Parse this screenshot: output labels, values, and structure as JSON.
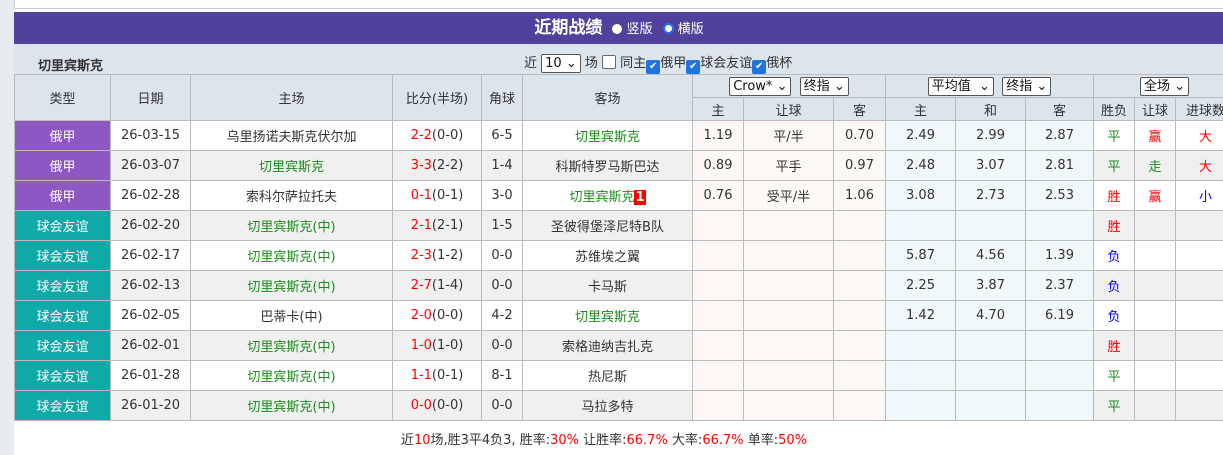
{
  "title": "近期战绩",
  "layout_options": [
    {
      "label": "竖版",
      "selected": false
    },
    {
      "label": "横版",
      "selected": true
    }
  ],
  "team": "切里宾斯克",
  "filters": {
    "near": "近",
    "count": "10",
    "unit": "场",
    "same_home": {
      "label": "同主",
      "checked": false
    },
    "leagues": [
      {
        "label": "俄甲",
        "checked": true
      },
      {
        "label": "球会友谊",
        "checked": true
      },
      {
        "label": "俄杯",
        "checked": true
      }
    ]
  },
  "headers": {
    "type": "类型",
    "date": "日期",
    "home": "主场",
    "score": "比分(半场)",
    "corner": "角球",
    "away": "客场",
    "company": "Crow*",
    "odds_type1": "终指",
    "avg": "平均值",
    "odds_type2": "终指",
    "period": "全场",
    "sub": [
      "主",
      "让球",
      "客",
      "主",
      "和",
      "客",
      "胜负",
      "让球",
      "进球数"
    ]
  },
  "colors": {
    "header_bg": "#51409c",
    "league_俄甲": "#8e58c2",
    "league_球会友谊": "#10a9a8",
    "win": "#ff0000",
    "draw": "#1c8a1c",
    "loss": "#0000ff"
  },
  "rows": [
    {
      "type": "俄甲",
      "date": "26-03-15",
      "home": "乌里扬诺夫斯克伏尔加",
      "home_self": false,
      "ft": "2-2",
      "ht": "(0-0)",
      "corner": "6-5",
      "away": "切里宾斯克",
      "away_self": true,
      "badge": "",
      "c_home": "1.19",
      "c_hcp": "平/半",
      "c_away": "0.70",
      "a_home": "2.49",
      "a_draw": "2.99",
      "a_away": "2.87",
      "result": "平",
      "hcp_result": "赢",
      "goals": "大"
    },
    {
      "type": "俄甲",
      "date": "26-03-07",
      "home": "切里宾斯克",
      "home_self": true,
      "ft": "3-3",
      "ht": "(2-2)",
      "corner": "1-4",
      "away": "科斯特罗马斯巴达",
      "away_self": false,
      "badge": "",
      "c_home": "0.89",
      "c_hcp": "平手",
      "c_away": "0.97",
      "a_home": "2.48",
      "a_draw": "3.07",
      "a_away": "2.81",
      "result": "平",
      "hcp_result": "走",
      "goals": "大"
    },
    {
      "type": "俄甲",
      "date": "26-02-28",
      "home": "索科尔萨拉托夫",
      "home_self": false,
      "ft": "0-1",
      "ht": "(0-1)",
      "corner": "3-0",
      "away": "切里宾斯克",
      "away_self": true,
      "badge": "1",
      "c_home": "0.76",
      "c_hcp": "受平/半",
      "c_away": "1.06",
      "a_home": "3.08",
      "a_draw": "2.73",
      "a_away": "2.53",
      "result": "胜",
      "hcp_result": "赢",
      "goals": "小"
    },
    {
      "type": "球会友谊",
      "date": "26-02-20",
      "home": "切里宾斯克(中)",
      "home_self": true,
      "ft": "2-1",
      "ht": "(2-1)",
      "corner": "1-5",
      "away": "圣彼得堡泽尼特B队",
      "away_self": false,
      "badge": "",
      "c_home": "",
      "c_hcp": "",
      "c_away": "",
      "a_home": "",
      "a_draw": "",
      "a_away": "",
      "result": "胜",
      "hcp_result": "",
      "goals": ""
    },
    {
      "type": "球会友谊",
      "date": "26-02-17",
      "home": "切里宾斯克(中)",
      "home_self": true,
      "ft": "2-3",
      "ht": "(1-2)",
      "corner": "0-0",
      "away": "苏维埃之翼",
      "away_self": false,
      "badge": "",
      "c_home": "",
      "c_hcp": "",
      "c_away": "",
      "a_home": "5.87",
      "a_draw": "4.56",
      "a_away": "1.39",
      "result": "负",
      "hcp_result": "",
      "goals": ""
    },
    {
      "type": "球会友谊",
      "date": "26-02-13",
      "home": "切里宾斯克(中)",
      "home_self": true,
      "ft": "2-7",
      "ht": "(1-4)",
      "corner": "0-0",
      "away": "卡马斯",
      "away_self": false,
      "badge": "",
      "c_home": "",
      "c_hcp": "",
      "c_away": "",
      "a_home": "2.25",
      "a_draw": "3.87",
      "a_away": "2.37",
      "result": "负",
      "hcp_result": "",
      "goals": ""
    },
    {
      "type": "球会友谊",
      "date": "26-02-05",
      "home": "巴蒂卡(中)",
      "home_self": false,
      "ft": "2-0",
      "ht": "(0-0)",
      "corner": "4-2",
      "away": "切里宾斯克",
      "away_self": true,
      "badge": "",
      "c_home": "",
      "c_hcp": "",
      "c_away": "",
      "a_home": "1.42",
      "a_draw": "4.70",
      "a_away": "6.19",
      "result": "负",
      "hcp_result": "",
      "goals": ""
    },
    {
      "type": "球会友谊",
      "date": "26-02-01",
      "home": "切里宾斯克(中)",
      "home_self": true,
      "ft": "1-0",
      "ht": "(1-0)",
      "corner": "0-0",
      "away": "索格迪纳吉扎克",
      "away_self": false,
      "badge": "",
      "c_home": "",
      "c_hcp": "",
      "c_away": "",
      "a_home": "",
      "a_draw": "",
      "a_away": "",
      "result": "胜",
      "hcp_result": "",
      "goals": ""
    },
    {
      "type": "球会友谊",
      "date": "26-01-28",
      "home": "切里宾斯克(中)",
      "home_self": true,
      "ft": "1-1",
      "ht": "(0-1)",
      "corner": "8-1",
      "away": "热尼斯",
      "away_self": false,
      "badge": "",
      "c_home": "",
      "c_hcp": "",
      "c_away": "",
      "a_home": "",
      "a_draw": "",
      "a_away": "",
      "result": "平",
      "hcp_result": "",
      "goals": ""
    },
    {
      "type": "球会友谊",
      "date": "26-01-20",
      "home": "切里宾斯克(中)",
      "home_self": true,
      "ft": "0-0",
      "ht": "(0-0)",
      "corner": "0-0",
      "away": "马拉多特",
      "away_self": false,
      "badge": "",
      "c_home": "",
      "c_hcp": "",
      "c_away": "",
      "a_home": "",
      "a_draw": "",
      "a_away": "",
      "result": "平",
      "hcp_result": "",
      "goals": ""
    }
  ],
  "summary": {
    "p1": "近",
    "n": "10",
    "p2": "场,胜3平4负3, 胜率:",
    "win_rate": "30%",
    "p3": " 让胜率:",
    "hcp_rate": "66.7%",
    "p4": " 大率:",
    "over_rate": "66.7%",
    "p5": " 单率:",
    "odd_rate": "50%"
  }
}
